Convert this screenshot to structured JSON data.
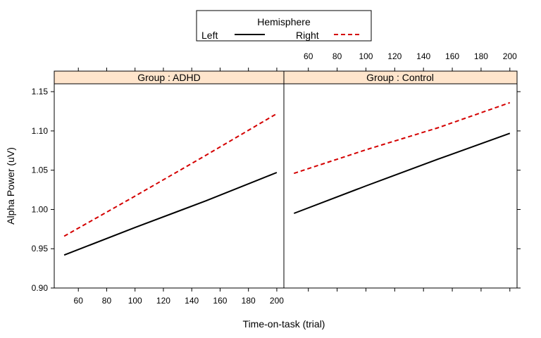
{
  "chart_data": {
    "type": "line",
    "xlabel": "Time-on-task (trial)",
    "ylabel": "Alpha Power (uV)",
    "xlim": [
      43,
      205
    ],
    "ylim": [
      0.9,
      1.16
    ],
    "x_ticks": [
      60,
      80,
      100,
      120,
      140,
      160,
      180,
      200
    ],
    "y_ticks": [
      0.9,
      0.95,
      1.0,
      1.05,
      1.1,
      1.15
    ],
    "y_tick_labels": [
      "0.90",
      "0.95",
      "1.00",
      "1.05",
      "1.10",
      "1.15"
    ],
    "grid": false,
    "legend": {
      "title": "Hemisphere",
      "placement": "top-center",
      "entries": [
        {
          "name": "Left",
          "color": "#000000",
          "dash": "solid"
        },
        {
          "name": "Right",
          "color": "#d40000",
          "dash": "dashed"
        }
      ]
    },
    "strip_color": "#ffe5cc",
    "panels": [
      {
        "strip": "Group : ADHD",
        "series": [
          {
            "name": "Left",
            "x": [
              50,
              100,
              150,
              200
            ],
            "y": [
              0.942,
              0.977,
              1.011,
              1.047
            ]
          },
          {
            "name": "Right",
            "x": [
              50,
              100,
              150,
              200
            ],
            "y": [
              0.966,
              1.017,
              1.069,
              1.122
            ]
          }
        ]
      },
      {
        "strip": "Group : Control",
        "series": [
          {
            "name": "Left",
            "x": [
              50,
              100,
              150,
              200
            ],
            "y": [
              0.995,
              1.03,
              1.064,
              1.097
            ]
          },
          {
            "name": "Right",
            "x": [
              50,
              100,
              150,
              200
            ],
            "y": [
              1.046,
              1.076,
              1.104,
              1.136
            ]
          }
        ]
      }
    ]
  }
}
